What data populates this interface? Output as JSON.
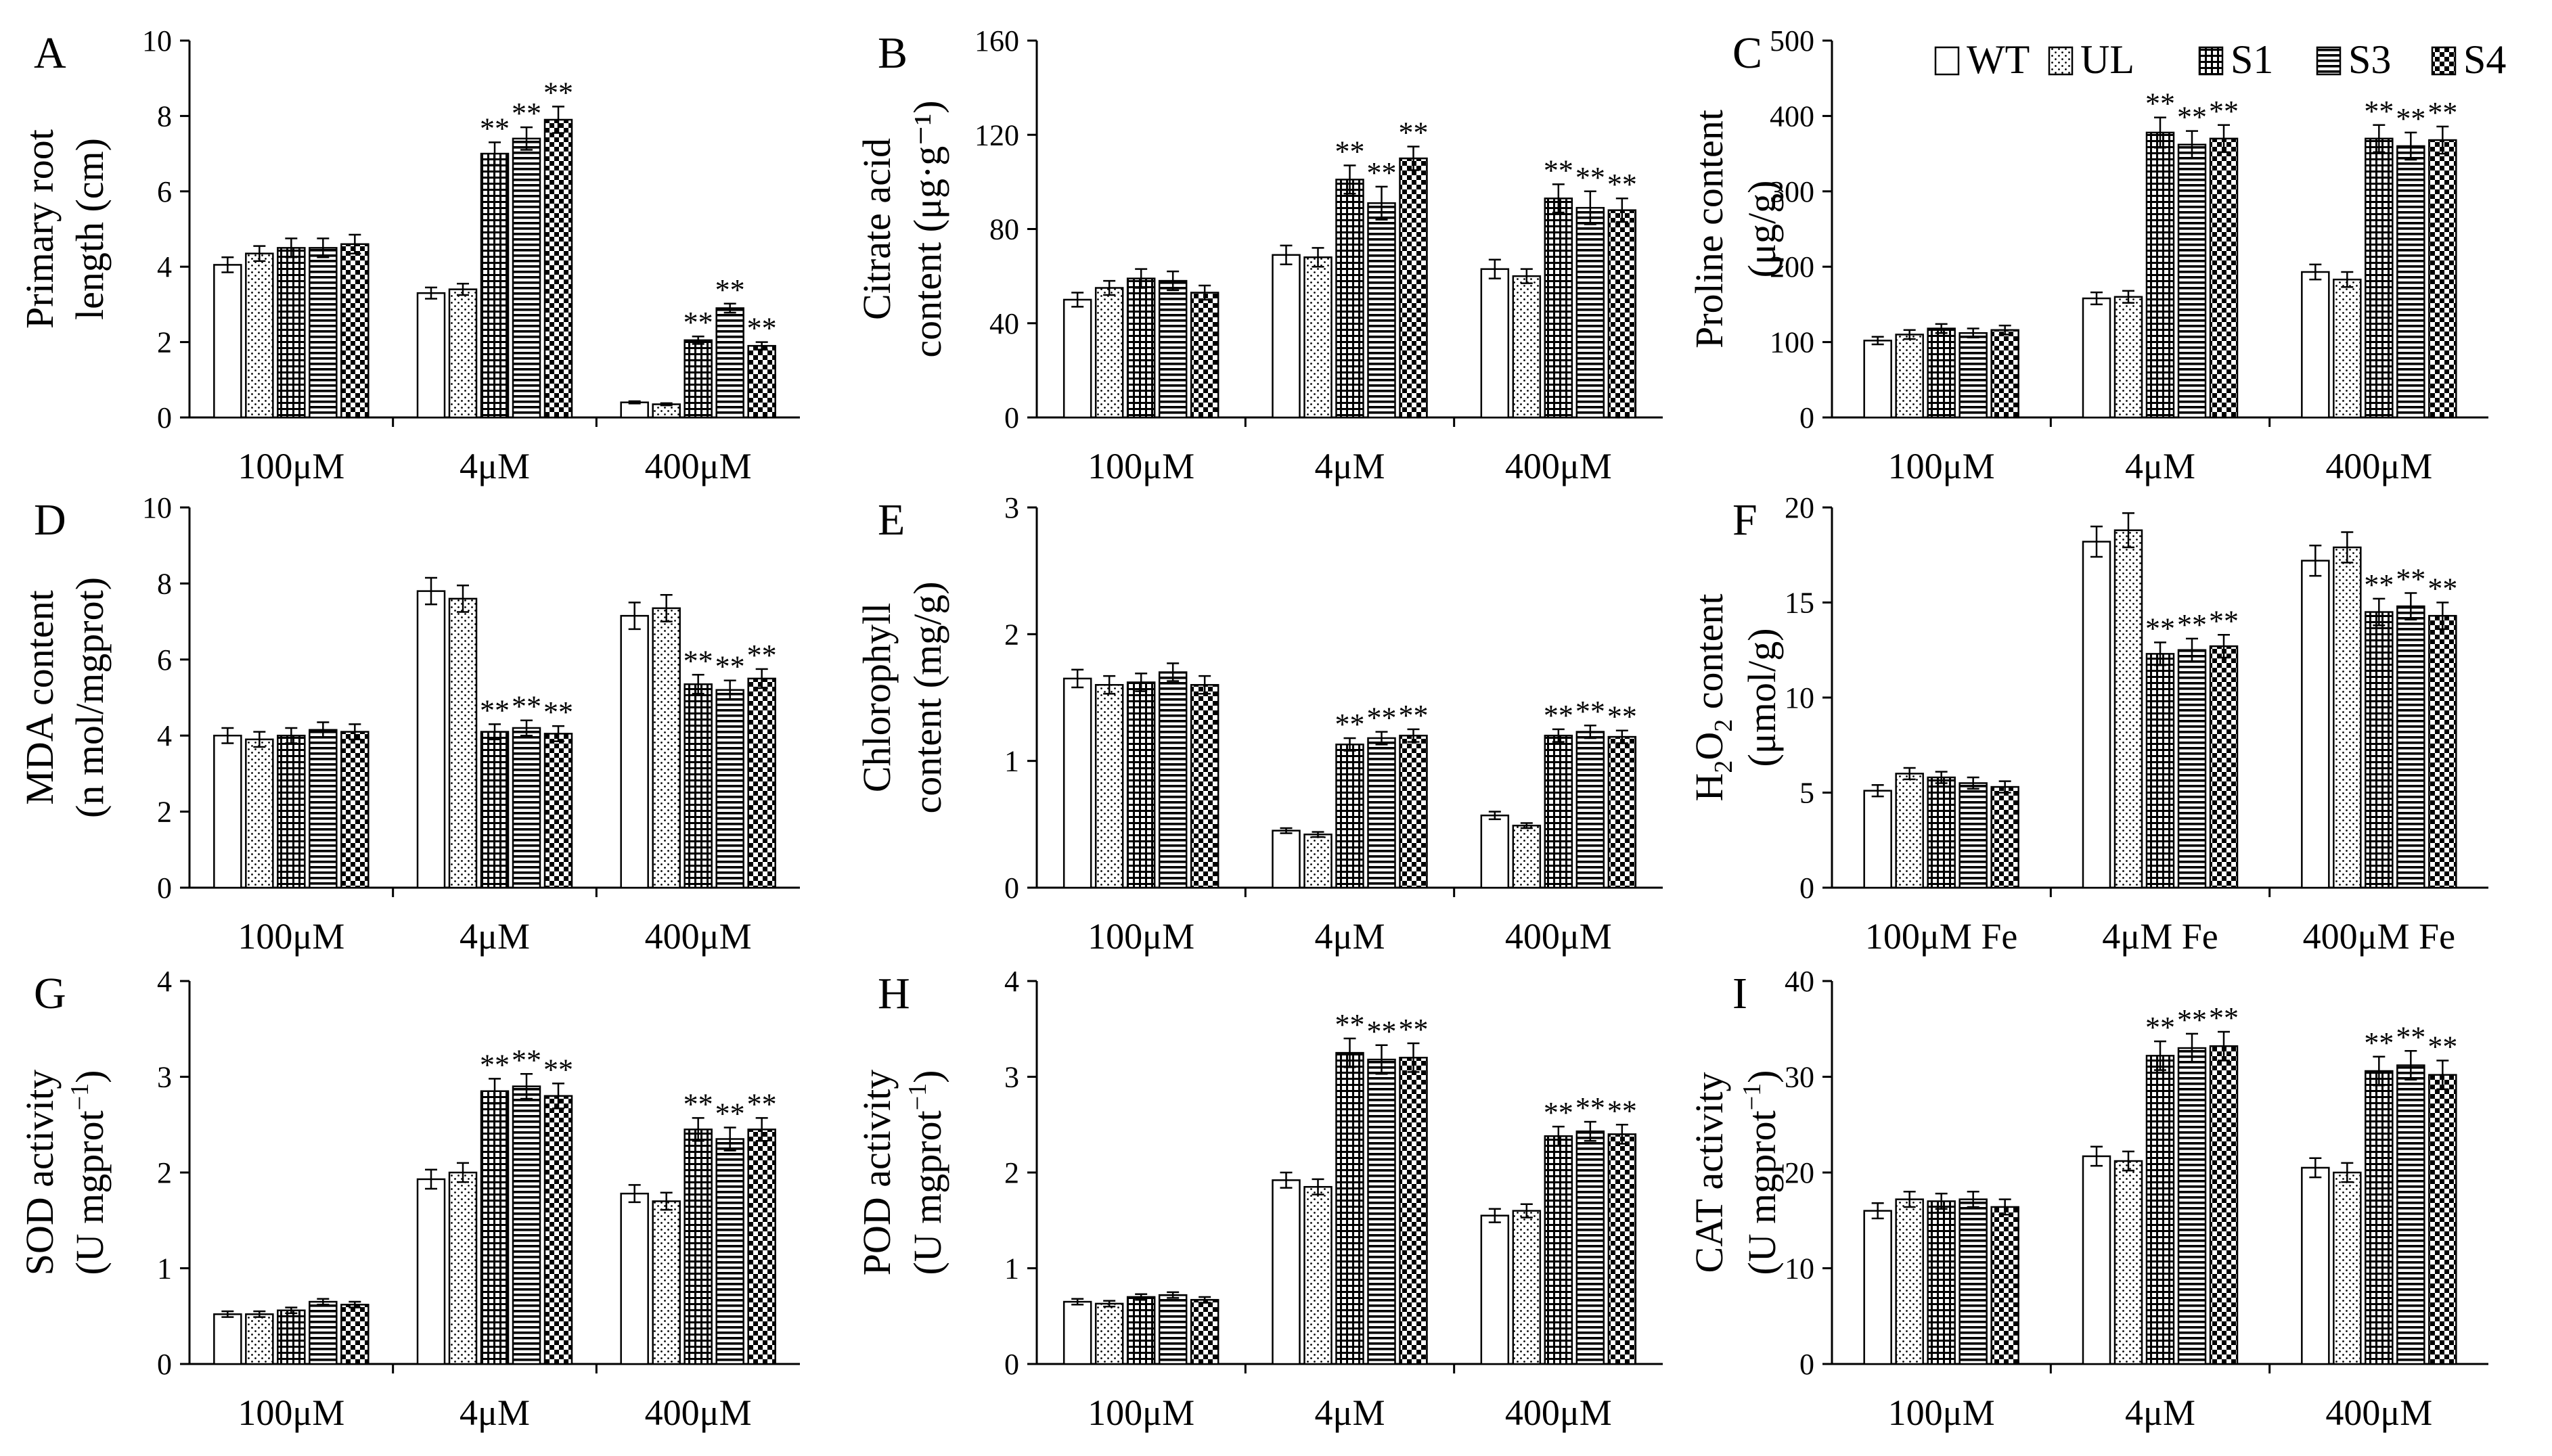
{
  "chart_data": [
    {
      "type": "bar",
      "panel": "A",
      "ylabel_lines": [
        "Primary root",
        "length (cm)"
      ],
      "ylim": [
        0,
        10
      ],
      "yticks": [
        "0",
        "2",
        "4",
        "6",
        "8",
        "10"
      ],
      "categories": [
        "100μM",
        "4μM",
        "400μM"
      ],
      "series": [
        {
          "name": "WT",
          "values": [
            4.05,
            3.3,
            0.4
          ],
          "errors": [
            0.2,
            0.15,
            0.03
          ],
          "sig": [
            "",
            "",
            ""
          ]
        },
        {
          "name": "UL",
          "values": [
            4.35,
            3.4,
            0.35
          ],
          "errors": [
            0.2,
            0.15,
            0.03
          ],
          "sig": [
            "",
            "",
            ""
          ]
        },
        {
          "name": "S1",
          "values": [
            4.5,
            7.0,
            2.05
          ],
          "errors": [
            0.25,
            0.3,
            0.1
          ],
          "sig": [
            "",
            "**",
            "**"
          ]
        },
        {
          "name": "S3",
          "values": [
            4.5,
            7.4,
            2.9
          ],
          "errors": [
            0.25,
            0.3,
            0.12
          ],
          "sig": [
            "",
            "**",
            "**"
          ]
        },
        {
          "name": "S4",
          "values": [
            4.6,
            7.9,
            1.9
          ],
          "errors": [
            0.25,
            0.35,
            0.1
          ],
          "sig": [
            "",
            "**",
            "**"
          ]
        }
      ]
    },
    {
      "type": "bar",
      "panel": "B",
      "ylabel_lines": [
        "Citrate acid",
        "content (μg·g⁻¹)"
      ],
      "ylim": [
        0,
        160
      ],
      "yticks": [
        "0",
        "40",
        "80",
        "120",
        "160"
      ],
      "categories": [
        "100μM",
        "4μM",
        "400μM"
      ],
      "series": [
        {
          "name": "WT",
          "values": [
            50,
            69,
            63
          ],
          "errors": [
            3,
            4,
            4
          ],
          "sig": [
            "",
            "",
            ""
          ]
        },
        {
          "name": "UL",
          "values": [
            55,
            68,
            60
          ],
          "errors": [
            3,
            4,
            3
          ],
          "sig": [
            "",
            "",
            ""
          ]
        },
        {
          "name": "S1",
          "values": [
            59,
            101,
            93
          ],
          "errors": [
            4,
            6,
            6
          ],
          "sig": [
            "",
            "**",
            "**"
          ]
        },
        {
          "name": "S3",
          "values": [
            58,
            91,
            89
          ],
          "errors": [
            4,
            7,
            7
          ],
          "sig": [
            "",
            "**",
            "**"
          ]
        },
        {
          "name": "S4",
          "values": [
            53,
            110,
            88
          ],
          "errors": [
            3,
            5,
            5
          ],
          "sig": [
            "",
            "**",
            "**"
          ]
        }
      ]
    },
    {
      "type": "bar",
      "panel": "C",
      "ylabel_lines": [
        "Proline content",
        "(μg/g)"
      ],
      "ylim": [
        0,
        500
      ],
      "yticks": [
        "0",
        "100",
        "200",
        "300",
        "400",
        "500"
      ],
      "categories": [
        "100μM",
        "4μM",
        "400μM"
      ],
      "series": [
        {
          "name": "WT",
          "values": [
            102,
            158,
            193
          ],
          "errors": [
            5,
            8,
            10
          ],
          "sig": [
            "",
            "",
            ""
          ]
        },
        {
          "name": "UL",
          "values": [
            110,
            160,
            183
          ],
          "errors": [
            6,
            8,
            10
          ],
          "sig": [
            "",
            "",
            ""
          ]
        },
        {
          "name": "S1",
          "values": [
            118,
            378,
            370
          ],
          "errors": [
            6,
            20,
            18
          ],
          "sig": [
            "",
            "**",
            "**"
          ]
        },
        {
          "name": "S3",
          "values": [
            112,
            362,
            360
          ],
          "errors": [
            6,
            18,
            18
          ],
          "sig": [
            "",
            "**",
            "**"
          ]
        },
        {
          "name": "S4",
          "values": [
            116,
            370,
            368
          ],
          "errors": [
            6,
            18,
            18
          ],
          "sig": [
            "",
            "**",
            "**"
          ]
        }
      ]
    },
    {
      "type": "bar",
      "panel": "D",
      "ylabel_lines": [
        "MDA content",
        "(n mol/mgprot)"
      ],
      "ylim": [
        0,
        10
      ],
      "yticks": [
        "0",
        "2",
        "4",
        "6",
        "8",
        "10"
      ],
      "categories": [
        "100μM",
        "4μM",
        "400μM"
      ],
      "series": [
        {
          "name": "WT",
          "values": [
            4.0,
            7.8,
            7.15
          ],
          "errors": [
            0.2,
            0.35,
            0.35
          ],
          "sig": [
            "",
            "",
            ""
          ]
        },
        {
          "name": "UL",
          "values": [
            3.9,
            7.6,
            7.35
          ],
          "errors": [
            0.2,
            0.35,
            0.35
          ],
          "sig": [
            "",
            "",
            ""
          ]
        },
        {
          "name": "S1",
          "values": [
            4.0,
            4.1,
            5.35
          ],
          "errors": [
            0.2,
            0.2,
            0.25
          ],
          "sig": [
            "",
            "**",
            "**"
          ]
        },
        {
          "name": "S3",
          "values": [
            4.15,
            4.2,
            5.2
          ],
          "errors": [
            0.2,
            0.2,
            0.25
          ],
          "sig": [
            "",
            "**",
            "**"
          ]
        },
        {
          "name": "S4",
          "values": [
            4.1,
            4.05,
            5.5
          ],
          "errors": [
            0.2,
            0.2,
            0.25
          ],
          "sig": [
            "",
            "**",
            "**"
          ]
        }
      ]
    },
    {
      "type": "bar",
      "panel": "E",
      "ylabel_lines": [
        "Chlorophyll",
        "content (mg/g)"
      ],
      "ylim": [
        0,
        3
      ],
      "yticks": [
        "0",
        "1",
        "2",
        "3"
      ],
      "categories": [
        "100μM",
        "4μM",
        "400μM"
      ],
      "series": [
        {
          "name": "WT",
          "values": [
            1.65,
            0.45,
            0.57
          ],
          "errors": [
            0.07,
            0.02,
            0.03
          ],
          "sig": [
            "",
            "",
            ""
          ]
        },
        {
          "name": "UL",
          "values": [
            1.6,
            0.42,
            0.49
          ],
          "errors": [
            0.07,
            0.02,
            0.02
          ],
          "sig": [
            "",
            "",
            ""
          ]
        },
        {
          "name": "S1",
          "values": [
            1.62,
            1.13,
            1.2
          ],
          "errors": [
            0.07,
            0.05,
            0.05
          ],
          "sig": [
            "",
            "**",
            "**"
          ]
        },
        {
          "name": "S3",
          "values": [
            1.7,
            1.18,
            1.23
          ],
          "errors": [
            0.07,
            0.05,
            0.05
          ],
          "sig": [
            "",
            "**",
            "**"
          ]
        },
        {
          "name": "S4",
          "values": [
            1.6,
            1.2,
            1.19
          ],
          "errors": [
            0.07,
            0.05,
            0.05
          ],
          "sig": [
            "",
            "**",
            "**"
          ]
        }
      ]
    },
    {
      "type": "bar",
      "panel": "F",
      "ylabel_main": "H",
      "ylabel_sub1": "2",
      "ylabel_mid": "O",
      "ylabel_sub2": "2",
      "ylabel_rest": " content",
      "ylabel_line2": "(μmol/g)",
      "ylim": [
        0,
        20
      ],
      "yticks": [
        "0",
        "5",
        "10",
        "15",
        "20"
      ],
      "categories": [
        "100μM Fe",
        "4μM Fe",
        "400μM Fe"
      ],
      "series": [
        {
          "name": "WT",
          "values": [
            5.1,
            18.2,
            17.2
          ],
          "errors": [
            0.3,
            0.8,
            0.8
          ],
          "sig": [
            "",
            "",
            ""
          ]
        },
        {
          "name": "UL",
          "values": [
            6.0,
            18.8,
            17.9
          ],
          "errors": [
            0.3,
            0.9,
            0.8
          ],
          "sig": [
            "",
            "",
            ""
          ]
        },
        {
          "name": "S1",
          "values": [
            5.8,
            12.3,
            14.5
          ],
          "errors": [
            0.3,
            0.6,
            0.7
          ],
          "sig": [
            "",
            "**",
            "**"
          ]
        },
        {
          "name": "S3",
          "values": [
            5.5,
            12.5,
            14.8
          ],
          "errors": [
            0.3,
            0.6,
            0.7
          ],
          "sig": [
            "",
            "**",
            "**"
          ]
        },
        {
          "name": "S4",
          "values": [
            5.3,
            12.7,
            14.3
          ],
          "errors": [
            0.3,
            0.6,
            0.7
          ],
          "sig": [
            "",
            "**",
            "**"
          ]
        }
      ]
    },
    {
      "type": "bar",
      "panel": "G",
      "ylabel_line1": "SOD activity",
      "ylabel_line2_main": "(U mgprot",
      "ylabel_line2_sup": "−1",
      "ylabel_line2_end": ")",
      "ylim": [
        0,
        4
      ],
      "yticks": [
        "0",
        "1",
        "2",
        "3",
        "4"
      ],
      "categories": [
        "100μM",
        "4μM",
        "400μM"
      ],
      "series": [
        {
          "name": "WT",
          "values": [
            0.52,
            1.93,
            1.78
          ],
          "errors": [
            0.03,
            0.1,
            0.09
          ],
          "sig": [
            "",
            "",
            ""
          ]
        },
        {
          "name": "UL",
          "values": [
            0.52,
            2.0,
            1.7
          ],
          "errors": [
            0.03,
            0.1,
            0.09
          ],
          "sig": [
            "",
            "",
            ""
          ]
        },
        {
          "name": "S1",
          "values": [
            0.56,
            2.85,
            2.45
          ],
          "errors": [
            0.03,
            0.13,
            0.12
          ],
          "sig": [
            "",
            "**",
            "**"
          ]
        },
        {
          "name": "S3",
          "values": [
            0.65,
            2.9,
            2.35
          ],
          "errors": [
            0.03,
            0.13,
            0.12
          ],
          "sig": [
            "",
            "**",
            "**"
          ]
        },
        {
          "name": "S4",
          "values": [
            0.62,
            2.8,
            2.45
          ],
          "errors": [
            0.03,
            0.13,
            0.12
          ],
          "sig": [
            "",
            "**",
            "**"
          ]
        }
      ]
    },
    {
      "type": "bar",
      "panel": "H",
      "ylabel_line1": "POD activity",
      "ylabel_line2_main": "(U mgprot",
      "ylabel_line2_sup": "−1",
      "ylabel_line2_end": ")",
      "ylim": [
        0,
        4
      ],
      "yticks": [
        "0",
        "1",
        "2",
        "3",
        "4"
      ],
      "categories": [
        "100μM",
        "4μM",
        "400μM"
      ],
      "series": [
        {
          "name": "WT",
          "values": [
            0.65,
            1.92,
            1.55
          ],
          "errors": [
            0.03,
            0.08,
            0.07
          ],
          "sig": [
            "",
            "",
            ""
          ]
        },
        {
          "name": "UL",
          "values": [
            0.63,
            1.85,
            1.6
          ],
          "errors": [
            0.03,
            0.08,
            0.07
          ],
          "sig": [
            "",
            "",
            ""
          ]
        },
        {
          "name": "S1",
          "values": [
            0.7,
            3.25,
            2.38
          ],
          "errors": [
            0.03,
            0.15,
            0.1
          ],
          "sig": [
            "",
            "**",
            "**"
          ]
        },
        {
          "name": "S3",
          "values": [
            0.72,
            3.18,
            2.43
          ],
          "errors": [
            0.03,
            0.15,
            0.1
          ],
          "sig": [
            "",
            "**",
            "**"
          ]
        },
        {
          "name": "S4",
          "values": [
            0.67,
            3.2,
            2.4
          ],
          "errors": [
            0.03,
            0.15,
            0.1
          ],
          "sig": [
            "",
            "**",
            "**"
          ]
        }
      ]
    },
    {
      "type": "bar",
      "panel": "I",
      "ylabel_line1": "CAT activity",
      "ylabel_line2_main": "(U mgprot",
      "ylabel_line2_sup": "−1",
      "ylabel_line2_end": ")",
      "ylim": [
        0,
        40
      ],
      "yticks": [
        "0",
        "10",
        "20",
        "30",
        "40"
      ],
      "categories": [
        "100μM",
        "4μM",
        "400μM"
      ],
      "series": [
        {
          "name": "WT",
          "values": [
            16,
            21.7,
            20.5
          ],
          "errors": [
            0.8,
            1.0,
            1.0
          ],
          "sig": [
            "",
            "",
            ""
          ]
        },
        {
          "name": "UL",
          "values": [
            17.2,
            21.2,
            20.0
          ],
          "errors": [
            0.8,
            1.0,
            1.0
          ],
          "sig": [
            "",
            "",
            ""
          ]
        },
        {
          "name": "S1",
          "values": [
            17,
            32.2,
            30.6
          ],
          "errors": [
            0.8,
            1.5,
            1.5
          ],
          "sig": [
            "",
            "**",
            "**"
          ]
        },
        {
          "name": "S3",
          "values": [
            17.2,
            33.0,
            31.2
          ],
          "errors": [
            0.8,
            1.5,
            1.5
          ],
          "sig": [
            "",
            "**",
            "**"
          ]
        },
        {
          "name": "S4",
          "values": [
            16.4,
            33.2,
            30.2
          ],
          "errors": [
            0.8,
            1.5,
            1.5
          ],
          "sig": [
            "",
            "**",
            "**"
          ]
        }
      ]
    }
  ],
  "legend": {
    "placement": "top-right",
    "entries": [
      "WT",
      "UL",
      "S1",
      "S3",
      "S4"
    ]
  }
}
